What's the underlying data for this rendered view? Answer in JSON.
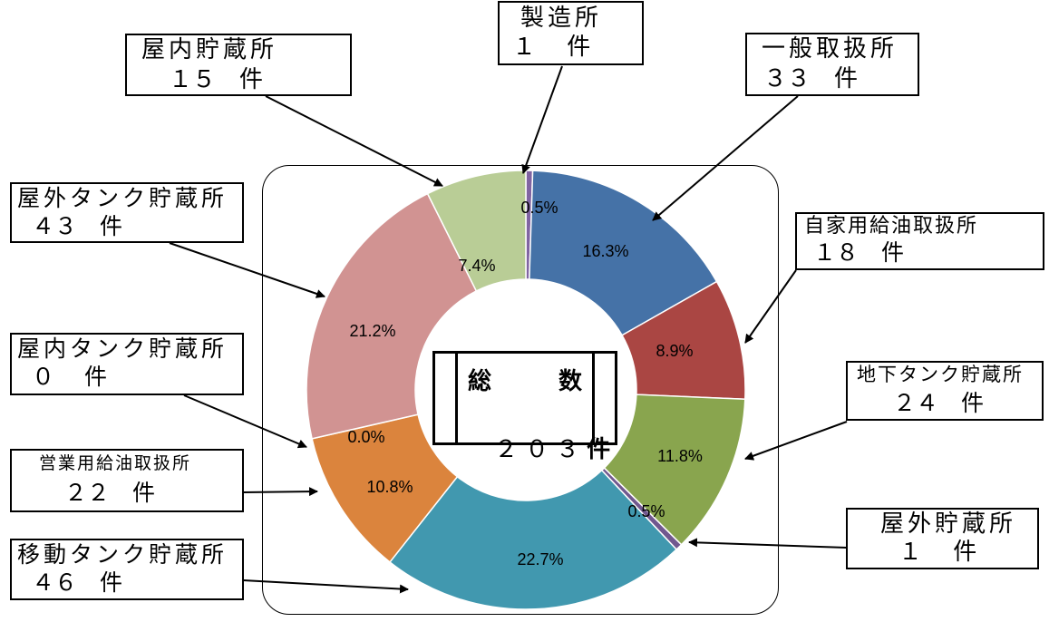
{
  "chart_data": {
    "type": "pie",
    "total_label_1": "総",
    "total_label_2": "数",
    "total_count": "２０３",
    "total_unit": "件",
    "slices": [
      {
        "name": "製造所",
        "count_text": "１　 件",
        "percent": 0.5,
        "label": "0.5%",
        "color": "#8064a2"
      },
      {
        "name": "一般取扱所",
        "count_text": "３３　件",
        "percent": 16.3,
        "label": "16.3%",
        "color": "#4572a7"
      },
      {
        "name": "自家用給油取扱所",
        "count_text": "１８　件",
        "percent": 8.9,
        "label": "8.9%",
        "color": "#aa4643"
      },
      {
        "name": "地下タンク貯蔵所",
        "count_text": "２４　件",
        "percent": 11.8,
        "label": "11.8%",
        "color": "#89a54e"
      },
      {
        "name": "屋外貯蔵所",
        "count_text": "１　 件",
        "percent": 0.5,
        "label": "0.5%",
        "color": "#71588f"
      },
      {
        "name": "移動タンク貯蔵所",
        "count_text": "４６　件",
        "percent": 22.7,
        "label": "22.7%",
        "color": "#4198af"
      },
      {
        "name": "営業用給油取扱所",
        "count_text": "２２　件",
        "percent": 10.8,
        "label": "10.8%",
        "color": "#db843d"
      },
      {
        "name": "屋内タンク貯蔵所",
        "count_text": "０　 件",
        "percent": 0.0,
        "label": "0.0%",
        "color": "#93a9cf"
      },
      {
        "name": "屋外タンク貯蔵所",
        "count_text": "４３　件",
        "percent": 21.2,
        "label": "21.2%",
        "color": "#d19392"
      },
      {
        "name": "屋内貯蔵所",
        "count_text": "１５　件",
        "percent": 7.4,
        "label": "7.4%",
        "color": "#b9cd96"
      }
    ]
  }
}
